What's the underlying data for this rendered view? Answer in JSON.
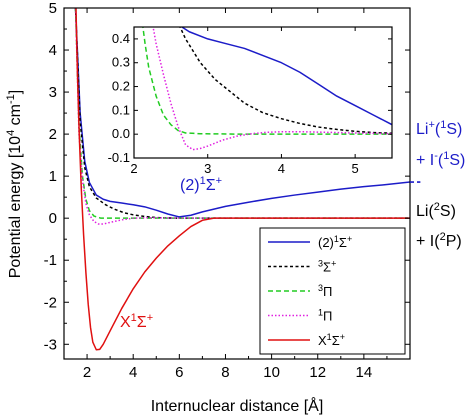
{
  "chart_data": {
    "type": "line",
    "xlabel": "Internuclear distance [Å]",
    "ylabel": "Potential energy [10",
    "ylabel_sup": "4",
    "ylabel_tail": " cm",
    "ylabel_sup2": "-1",
    "ylabel_end": "]",
    "xlim": [
      1.0,
      16.0
    ],
    "ylim": [
      -3.35,
      5.0
    ],
    "xticks": [
      "2",
      "4",
      "6",
      "8",
      "10",
      "12",
      "14"
    ],
    "xtick_values": [
      2,
      4,
      6,
      8,
      10,
      12,
      14
    ],
    "yticks": [
      "-3",
      "-2",
      "-1",
      "0",
      "1",
      "2",
      "3",
      "4",
      "5"
    ],
    "ytick_values": [
      -3,
      -2,
      -1,
      0,
      1,
      2,
      3,
      4,
      5
    ],
    "series": [
      {
        "key": "s2",
        "color": "#1c1cc8",
        "dash": "",
        "points": [
          [
            1.5,
            5.0
          ],
          [
            1.7,
            2.5
          ],
          [
            1.9,
            1.35
          ],
          [
            2.1,
            0.85
          ],
          [
            2.4,
            0.55
          ],
          [
            2.7,
            0.45
          ],
          [
            3.0,
            0.4
          ],
          [
            3.5,
            0.36
          ],
          [
            4.0,
            0.32
          ],
          [
            4.5,
            0.27
          ],
          [
            5.0,
            0.19
          ],
          [
            5.5,
            0.1
          ],
          [
            6.0,
            0.03
          ],
          [
            6.5,
            0.07
          ],
          [
            7.0,
            0.15
          ],
          [
            8.0,
            0.28
          ],
          [
            9.0,
            0.38
          ],
          [
            10.0,
            0.47
          ],
          [
            11.0,
            0.55
          ],
          [
            12.0,
            0.62
          ],
          [
            13.0,
            0.69
          ],
          [
            14.0,
            0.75
          ],
          [
            15.0,
            0.8
          ],
          [
            16.0,
            0.86
          ]
        ]
      },
      {
        "key": "s3s",
        "color": "#000000",
        "dash": "3,2.5",
        "points": [
          [
            1.5,
            5.0
          ],
          [
            1.7,
            2.3
          ],
          [
            1.9,
            1.2
          ],
          [
            2.1,
            0.75
          ],
          [
            2.4,
            0.48
          ],
          [
            2.8,
            0.32
          ],
          [
            3.2,
            0.21
          ],
          [
            3.6,
            0.13
          ],
          [
            4.0,
            0.08
          ],
          [
            4.5,
            0.04
          ],
          [
            5.0,
            0.015
          ],
          [
            5.5,
            0.005
          ],
          [
            6.0,
            0.0
          ],
          [
            16.0,
            0.0
          ]
        ]
      },
      {
        "key": "s3p",
        "color": "#22cc22",
        "dash": "5,3",
        "points": [
          [
            1.5,
            5.0
          ],
          [
            1.65,
            2.2
          ],
          [
            1.8,
            1.0
          ],
          [
            1.95,
            0.45
          ],
          [
            2.1,
            0.18
          ],
          [
            2.3,
            0.05
          ],
          [
            2.6,
            0.0
          ],
          [
            3.0,
            0.0
          ],
          [
            16.0,
            0.0
          ]
        ]
      },
      {
        "key": "s1p",
        "color": "#e020e0",
        "dash": "1.5,2",
        "points": [
          [
            1.5,
            5.0
          ],
          [
            1.65,
            2.0
          ],
          [
            1.8,
            0.9
          ],
          [
            1.95,
            0.35
          ],
          [
            2.1,
            0.08
          ],
          [
            2.3,
            -0.08
          ],
          [
            2.5,
            -0.14
          ],
          [
            2.7,
            -0.14
          ],
          [
            3.0,
            -0.1
          ],
          [
            3.5,
            -0.04
          ],
          [
            4.0,
            0.0
          ],
          [
            4.5,
            0.012
          ],
          [
            5.0,
            0.01
          ],
          [
            6.0,
            0.0
          ],
          [
            16.0,
            0.0
          ]
        ]
      },
      {
        "key": "sX",
        "color": "#e01010",
        "dash": "",
        "points": [
          [
            1.52,
            5.0
          ],
          [
            1.58,
            3.5
          ],
          [
            1.66,
            2.0
          ],
          [
            1.75,
            0.7
          ],
          [
            1.85,
            -0.4
          ],
          [
            1.95,
            -1.3
          ],
          [
            2.05,
            -2.05
          ],
          [
            2.15,
            -2.6
          ],
          [
            2.25,
            -2.95
          ],
          [
            2.4,
            -3.13
          ],
          [
            2.55,
            -3.12
          ],
          [
            2.7,
            -3.0
          ],
          [
            3.0,
            -2.68
          ],
          [
            3.5,
            -2.15
          ],
          [
            4.0,
            -1.68
          ],
          [
            4.5,
            -1.28
          ],
          [
            5.0,
            -0.95
          ],
          [
            5.5,
            -0.66
          ],
          [
            6.0,
            -0.42
          ],
          [
            6.5,
            -0.2
          ],
          [
            7.0,
            -0.05
          ],
          [
            7.5,
            0.0
          ],
          [
            16.0,
            0.0
          ]
        ]
      },
      {
        "key": "asym",
        "color": "#1c1cc8",
        "dash": "4,3",
        "points": [
          [
            16.0,
            0.86
          ],
          [
            16.45,
            0.86
          ]
        ]
      }
    ],
    "legend": {
      "placement": "center-right",
      "entries": [
        {
          "key": "s2",
          "pre": "(2)",
          "sup1": "1",
          "main": "Σ",
          "sup2": "+"
        },
        {
          "key": "s3s",
          "pre": "",
          "sup1": "3",
          "main": "Σ",
          "sup2": "+"
        },
        {
          "key": "s3p",
          "pre": "",
          "sup1": "3",
          "main": "Π",
          "sup2": ""
        },
        {
          "key": "s1p",
          "pre": "",
          "sup1": "1",
          "main": "Π",
          "sup2": ""
        },
        {
          "key": "sX",
          "pre": "X",
          "sup1": "1",
          "main": "Σ",
          "sup2": "+"
        }
      ]
    },
    "inset": {
      "xlim": [
        2.0,
        5.5
      ],
      "ylim": [
        -0.1,
        0.45
      ],
      "xticks": [
        "2",
        "3",
        "4",
        "5"
      ],
      "xtick_values": [
        2,
        3,
        4,
        5
      ],
      "yticks": [
        "-0.1",
        "0.0",
        "0.1",
        "0.2",
        "0.3",
        "0.4"
      ],
      "ytick_values": [
        -0.1,
        0.0,
        0.1,
        0.2,
        0.3,
        0.4
      ],
      "series": [
        {
          "key": "s2",
          "color": "#1c1cc8",
          "dash": "",
          "points": [
            [
              2.55,
              0.5
            ],
            [
              2.6,
              0.46
            ],
            [
              2.75,
              0.43
            ],
            [
              3.0,
              0.4
            ],
            [
              3.25,
              0.38
            ],
            [
              3.5,
              0.36
            ],
            [
              3.75,
              0.33
            ],
            [
              4.0,
              0.3
            ],
            [
              4.25,
              0.26
            ],
            [
              4.5,
              0.21
            ],
            [
              4.75,
              0.16
            ],
            [
              5.0,
              0.12
            ],
            [
              5.25,
              0.08
            ],
            [
              5.5,
              0.04
            ]
          ]
        },
        {
          "key": "s3s",
          "color": "#000000",
          "dash": "3,2.5",
          "points": [
            [
              2.55,
              0.5
            ],
            [
              2.7,
              0.4
            ],
            [
              2.9,
              0.3
            ],
            [
              3.1,
              0.23
            ],
            [
              3.3,
              0.18
            ],
            [
              3.5,
              0.13
            ],
            [
              3.75,
              0.09
            ],
            [
              4.0,
              0.065
            ],
            [
              4.25,
              0.045
            ],
            [
              4.5,
              0.03
            ],
            [
              4.75,
              0.02
            ],
            [
              5.0,
              0.012
            ],
            [
              5.25,
              0.007
            ],
            [
              5.5,
              0.004
            ]
          ]
        },
        {
          "key": "s3p",
          "color": "#22cc22",
          "dash": "5,3",
          "points": [
            [
              2.1,
              0.5
            ],
            [
              2.15,
              0.38
            ],
            [
              2.2,
              0.28
            ],
            [
              2.3,
              0.16
            ],
            [
              2.4,
              0.08
            ],
            [
              2.5,
              0.04
            ],
            [
              2.6,
              0.015
            ],
            [
              2.7,
              0.005
            ],
            [
              2.9,
              0.002
            ],
            [
              3.5,
              0.0
            ],
            [
              5.5,
              0.0
            ]
          ]
        },
        {
          "key": "s1p",
          "color": "#e020e0",
          "dash": "1.5,2",
          "points": [
            [
              2.23,
              0.5
            ],
            [
              2.3,
              0.38
            ],
            [
              2.4,
              0.25
            ],
            [
              2.5,
              0.13
            ],
            [
              2.6,
              0.03
            ],
            [
              2.7,
              -0.045
            ],
            [
              2.8,
              -0.065
            ],
            [
              2.9,
              -0.06
            ],
            [
              3.0,
              -0.05
            ],
            [
              3.2,
              -0.025
            ],
            [
              3.4,
              -0.008
            ],
            [
              3.6,
              0.002
            ],
            [
              3.8,
              0.008
            ],
            [
              4.0,
              0.01
            ],
            [
              4.3,
              0.01
            ],
            [
              4.6,
              0.008
            ],
            [
              5.0,
              0.005
            ],
            [
              5.5,
              0.002
            ]
          ]
        }
      ]
    },
    "annotations": {
      "state2": {
        "pre": "(2)",
        "sup1": "1",
        "main": "Σ",
        "sup2": "+",
        "color": "#1c1cc8"
      },
      "stateX": {
        "pre": "X",
        "sup1": "1",
        "main": "Σ",
        "sup2": "+",
        "color": "#e01010"
      },
      "ionic1": {
        "a": "Li",
        "a_sup": "+",
        "b": "(",
        "b_sup": "1",
        "c": "S)",
        "color": "#1c1cc8"
      },
      "ionic2": {
        "a": "+ I",
        "a_sup": "-",
        "b": "(",
        "b_sup": "1",
        "c": "S)",
        "color": "#1c1cc8"
      },
      "neutral1": {
        "a": "Li(",
        "a_sup": "2",
        "c": "S)",
        "color": "#000000"
      },
      "neutral2": {
        "a": "+ I(",
        "a_sup": "2",
        "c": "P)",
        "color": "#000000"
      }
    }
  }
}
